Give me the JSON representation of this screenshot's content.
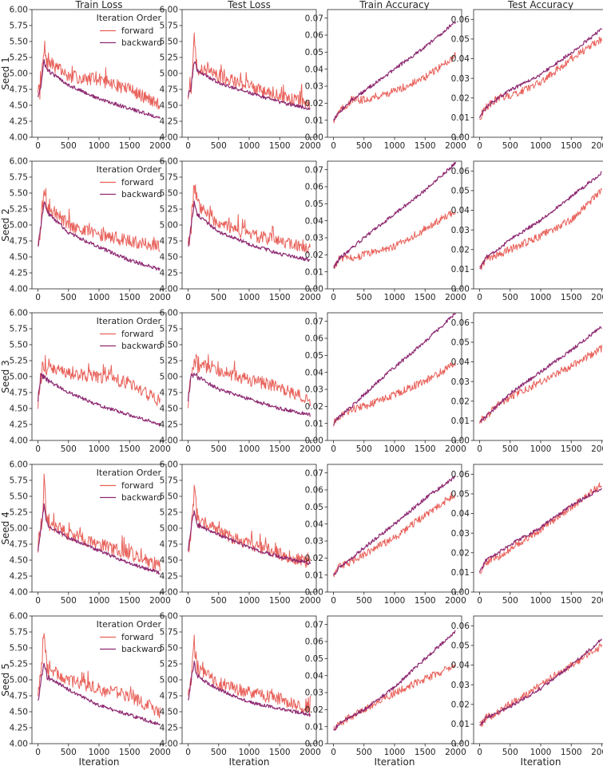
{
  "figure": {
    "column_titles": [
      "Train Loss",
      "Test Loss",
      "Train Accuracy",
      "Test Accuracy"
    ],
    "row_labels": [
      "Seed 1",
      "Seed 2",
      "Seed 3",
      "Seed 4",
      "Seed 5"
    ],
    "xlabel": "Iteration",
    "legend": {
      "title": "Iteration Order",
      "entries": [
        {
          "label": "forward",
          "color": "#e8615a"
        },
        {
          "label": "backward",
          "color": "#8e2a72"
        }
      ]
    },
    "colors": {
      "forward": "#e8615a",
      "backward": "#8e2a72",
      "axes": "#262626"
    }
  },
  "chart_data": {
    "type": "line",
    "x_range": [
      0,
      2000
    ],
    "x_ticks": [
      0,
      500,
      1000,
      1500,
      2000
    ],
    "x_tick_labels": [
      "0",
      "500",
      "1000",
      "1500",
      "2000"
    ],
    "series_names": [
      "forward",
      "backward"
    ],
    "note": "Noisy per-iteration curves; values below are approximate envelope points read from the figure (x in iterations).",
    "panels": {
      "loss": {
        "ylim": [
          4.0,
          6.0
        ],
        "y_ticks": [
          4.0,
          4.25,
          4.5,
          4.75,
          5.0,
          5.25,
          5.5,
          5.75,
          6.0
        ],
        "y_tick_labels": [
          "4.00",
          "4.25",
          "4.50",
          "4.75",
          "5.00",
          "5.25",
          "5.50",
          "5.75",
          "6.00"
        ]
      },
      "train_accuracy": {
        "ylim": [
          0.0,
          0.075
        ],
        "y_ticks": [
          0.0,
          0.01,
          0.02,
          0.03,
          0.04,
          0.05,
          0.06,
          0.07
        ],
        "y_tick_labels": [
          "0.00",
          "0.01",
          "0.02",
          "0.03",
          "0.04",
          "0.05",
          "0.06",
          "0.07"
        ]
      },
      "test_accuracy": {
        "ylim": [
          0.0,
          0.065
        ],
        "y_ticks": [
          0.0,
          0.01,
          0.02,
          0.03,
          0.04,
          0.05,
          0.06
        ],
        "y_tick_labels": [
          "0.00",
          "0.01",
          "0.02",
          "0.03",
          "0.04",
          "0.05",
          "0.06"
        ]
      }
    },
    "rows": [
      {
        "seed": "Seed 1",
        "train_loss": {
          "forward": {
            "x": [
              0,
              50,
              100,
              150,
              500,
              1000,
              1500,
              2000
            ],
            "y": [
              4.65,
              4.8,
              5.45,
              5.2,
              4.95,
              4.9,
              4.75,
              4.5
            ]
          },
          "backward": {
            "x": [
              0,
              50,
              100,
              150,
              500,
              1000,
              1500,
              2000
            ],
            "y": [
              4.65,
              4.8,
              5.2,
              5.05,
              4.82,
              4.6,
              4.45,
              4.3
            ]
          }
        },
        "test_loss": {
          "forward": {
            "x": [
              0,
              50,
              100,
              150,
              500,
              1000,
              1500,
              2000
            ],
            "y": [
              4.65,
              4.8,
              5.5,
              5.1,
              4.95,
              4.8,
              4.65,
              4.5
            ]
          },
          "backward": {
            "x": [
              0,
              50,
              100,
              150,
              500,
              1000,
              1500,
              2000
            ],
            "y": [
              4.65,
              4.8,
              5.2,
              5.05,
              4.85,
              4.7,
              4.55,
              4.45
            ]
          }
        },
        "train_accuracy": {
          "forward": {
            "x": [
              0,
              100,
              300,
              500,
              1000,
              1500,
              2000
            ],
            "y": [
              0.01,
              0.015,
              0.022,
              0.022,
              0.027,
              0.035,
              0.048
            ]
          },
          "backward": {
            "x": [
              0,
              100,
              300,
              500,
              1000,
              1500,
              2000
            ],
            "y": [
              0.01,
              0.015,
              0.022,
              0.027,
              0.04,
              0.053,
              0.068
            ]
          }
        },
        "test_accuracy": {
          "forward": {
            "x": [
              0,
              100,
              300,
              500,
              1000,
              1500,
              2000
            ],
            "y": [
              0.01,
              0.015,
              0.02,
              0.021,
              0.028,
              0.04,
              0.05
            ]
          },
          "backward": {
            "x": [
              0,
              100,
              300,
              500,
              1000,
              1500,
              2000
            ],
            "y": [
              0.01,
              0.015,
              0.02,
              0.024,
              0.032,
              0.043,
              0.055
            ]
          }
        }
      },
      {
        "seed": "Seed 2",
        "train_loss": {
          "forward": {
            "x": [
              0,
              50,
              100,
              150,
              500,
              1000,
              1500,
              2000
            ],
            "y": [
              4.65,
              5.0,
              5.6,
              5.3,
              5.0,
              4.85,
              4.75,
              4.65
            ]
          },
          "backward": {
            "x": [
              0,
              50,
              100,
              150,
              500,
              1000,
              1500,
              2000
            ],
            "y": [
              4.65,
              5.0,
              5.35,
              5.2,
              4.88,
              4.65,
              4.45,
              4.3
            ]
          }
        },
        "test_loss": {
          "forward": {
            "x": [
              0,
              50,
              100,
              150,
              500,
              1000,
              1500,
              2000
            ],
            "y": [
              4.65,
              5.0,
              5.6,
              5.3,
              5.0,
              4.85,
              4.75,
              4.65
            ]
          },
          "backward": {
            "x": [
              0,
              50,
              100,
              150,
              500,
              1000,
              1500,
              2000
            ],
            "y": [
              4.65,
              5.0,
              5.35,
              5.15,
              4.9,
              4.7,
              4.55,
              4.45
            ]
          }
        },
        "train_accuracy": {
          "forward": {
            "x": [
              0,
              100,
              300,
              500,
              1000,
              1500,
              2000
            ],
            "y": [
              0.012,
              0.018,
              0.018,
              0.02,
              0.025,
              0.035,
              0.046
            ]
          },
          "backward": {
            "x": [
              0,
              100,
              300,
              500,
              1000,
              1500,
              2000
            ],
            "y": [
              0.012,
              0.018,
              0.024,
              0.03,
              0.044,
              0.058,
              0.074
            ]
          }
        },
        "test_accuracy": {
          "forward": {
            "x": [
              0,
              100,
              300,
              500,
              1000,
              1500,
              2000
            ],
            "y": [
              0.01,
              0.015,
              0.017,
              0.02,
              0.027,
              0.035,
              0.05
            ]
          },
          "backward": {
            "x": [
              0,
              100,
              300,
              500,
              1000,
              1500,
              2000
            ],
            "y": [
              0.01,
              0.016,
              0.02,
              0.025,
              0.035,
              0.047,
              0.059
            ]
          }
        }
      },
      {
        "seed": "Seed 3",
        "train_loss": {
          "forward": {
            "x": [
              0,
              50,
              100,
              150,
              500,
              1000,
              1500,
              2000
            ],
            "y": [
              4.65,
              5.0,
              5.2,
              5.15,
              5.05,
              5.0,
              4.9,
              4.6
            ]
          },
          "backward": {
            "x": [
              0,
              50,
              100,
              150,
              500,
              1000,
              1500,
              2000
            ],
            "y": [
              4.65,
              5.0,
              5.0,
              4.95,
              4.75,
              4.55,
              4.4,
              4.25
            ]
          }
        },
        "test_loss": {
          "forward": {
            "x": [
              0,
              50,
              100,
              150,
              500,
              1000,
              1500,
              2000
            ],
            "y": [
              4.65,
              5.0,
              5.3,
              5.2,
              5.1,
              4.95,
              4.85,
              4.6
            ]
          },
          "backward": {
            "x": [
              0,
              50,
              100,
              150,
              500,
              1000,
              1500,
              2000
            ],
            "y": [
              4.65,
              5.0,
              5.05,
              5.0,
              4.8,
              4.65,
              4.5,
              4.4
            ]
          }
        },
        "train_accuracy": {
          "forward": {
            "x": [
              0,
              100,
              300,
              500,
              1000,
              1500,
              2000
            ],
            "y": [
              0.01,
              0.014,
              0.018,
              0.02,
              0.027,
              0.035,
              0.045
            ]
          },
          "backward": {
            "x": [
              0,
              100,
              300,
              500,
              1000,
              1500,
              2000
            ],
            "y": [
              0.01,
              0.014,
              0.02,
              0.027,
              0.043,
              0.058,
              0.075
            ]
          }
        },
        "test_accuracy": {
          "forward": {
            "x": [
              0,
              100,
              300,
              500,
              1000,
              1500,
              2000
            ],
            "y": [
              0.01,
              0.012,
              0.018,
              0.022,
              0.03,
              0.038,
              0.047
            ]
          },
          "backward": {
            "x": [
              0,
              100,
              300,
              500,
              1000,
              1500,
              2000
            ],
            "y": [
              0.01,
              0.012,
              0.018,
              0.024,
              0.035,
              0.046,
              0.058
            ]
          }
        }
      },
      {
        "seed": "Seed 4",
        "train_loss": {
          "forward": {
            "x": [
              0,
              50,
              100,
              150,
              500,
              1000,
              1500,
              2000
            ],
            "y": [
              4.65,
              5.0,
              5.7,
              5.1,
              4.9,
              4.75,
              4.6,
              4.4
            ]
          },
          "backward": {
            "x": [
              0,
              50,
              100,
              150,
              500,
              1000,
              1500,
              2000
            ],
            "y": [
              4.65,
              5.0,
              5.35,
              5.05,
              4.85,
              4.65,
              4.45,
              4.3
            ]
          }
        },
        "test_loss": {
          "forward": {
            "x": [
              0,
              50,
              100,
              150,
              500,
              1000,
              1500,
              2000
            ],
            "y": [
              4.65,
              5.0,
              5.6,
              5.15,
              4.95,
              4.75,
              4.6,
              4.45
            ]
          },
          "backward": {
            "x": [
              0,
              50,
              100,
              150,
              500,
              1000,
              1500,
              2000
            ],
            "y": [
              4.65,
              5.0,
              5.3,
              5.05,
              4.9,
              4.7,
              4.55,
              4.45
            ]
          }
        },
        "train_accuracy": {
          "forward": {
            "x": [
              0,
              100,
              300,
              500,
              1000,
              1500,
              2000
            ],
            "y": [
              0.01,
              0.015,
              0.018,
              0.022,
              0.032,
              0.045,
              0.058
            ]
          },
          "backward": {
            "x": [
              0,
              100,
              300,
              500,
              1000,
              1500,
              2000
            ],
            "y": [
              0.01,
              0.015,
              0.02,
              0.026,
              0.04,
              0.055,
              0.068
            ]
          }
        },
        "test_accuracy": {
          "forward": {
            "x": [
              0,
              100,
              300,
              500,
              1000,
              1500,
              2000
            ],
            "y": [
              0.01,
              0.015,
              0.018,
              0.022,
              0.032,
              0.043,
              0.055
            ]
          },
          "backward": {
            "x": [
              0,
              100,
              300,
              500,
              1000,
              1500,
              2000
            ],
            "y": [
              0.01,
              0.016,
              0.02,
              0.024,
              0.033,
              0.044,
              0.053
            ]
          }
        }
      },
      {
        "seed": "Seed 5",
        "train_loss": {
          "forward": {
            "x": [
              0,
              50,
              100,
              150,
              500,
              1000,
              1500,
              2000
            ],
            "y": [
              4.65,
              5.0,
              5.7,
              5.2,
              5.0,
              4.85,
              4.75,
              4.5
            ]
          },
          "backward": {
            "x": [
              0,
              50,
              100,
              150,
              500,
              1000,
              1500,
              2000
            ],
            "y": [
              4.65,
              5.0,
              5.25,
              5.05,
              4.85,
              4.6,
              4.45,
              4.3
            ]
          }
        },
        "test_loss": {
          "forward": {
            "x": [
              0,
              50,
              100,
              150,
              500,
              1000,
              1500,
              2000
            ],
            "y": [
              4.65,
              5.0,
              5.6,
              5.2,
              4.95,
              4.8,
              4.7,
              4.5
            ]
          },
          "backward": {
            "x": [
              0,
              50,
              100,
              150,
              500,
              1000,
              1500,
              2000
            ],
            "y": [
              4.65,
              5.0,
              5.25,
              5.05,
              4.85,
              4.65,
              4.55,
              4.45
            ]
          }
        },
        "train_accuracy": {
          "forward": {
            "x": [
              0,
              100,
              300,
              500,
              1000,
              1500,
              2000
            ],
            "y": [
              0.008,
              0.012,
              0.016,
              0.02,
              0.03,
              0.038,
              0.046
            ]
          },
          "backward": {
            "x": [
              0,
              100,
              300,
              500,
              1000,
              1500,
              2000
            ],
            "y": [
              0.008,
              0.012,
              0.016,
              0.02,
              0.033,
              0.05,
              0.066
            ]
          }
        },
        "test_accuracy": {
          "forward": {
            "x": [
              0,
              100,
              300,
              500,
              1000,
              1500,
              2000
            ],
            "y": [
              0.009,
              0.013,
              0.016,
              0.02,
              0.03,
              0.04,
              0.05
            ]
          },
          "backward": {
            "x": [
              0,
              100,
              300,
              500,
              1000,
              1500,
              2000
            ],
            "y": [
              0.009,
              0.013,
              0.016,
              0.019,
              0.028,
              0.04,
              0.053
            ]
          }
        }
      }
    ]
  }
}
